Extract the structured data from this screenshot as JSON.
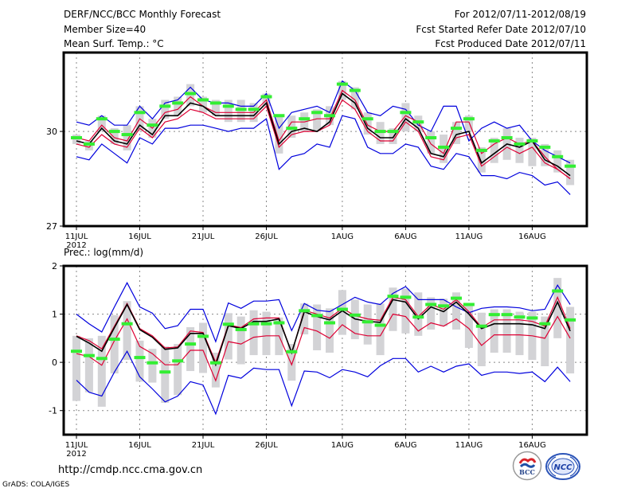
{
  "header": {
    "title": "DERF/NCC/BCC Monthly Forecast",
    "member_size": "Member Size=40",
    "variable": "Mean Surf. Temp.: °C",
    "period": "For 2012/07/11-2012/08/19",
    "started": "Fcst Started Refer Date 2012/07/10",
    "produced": "Fcst Produced Date 2012/07/11"
  },
  "footer": {
    "url": "http://cmdp.ncc.cma.gov.cn",
    "credit": "GrADS: COLA/IGES",
    "logos": [
      "BCC",
      "NCC"
    ]
  },
  "colors": {
    "envelope": "#0000dd",
    "quartile": "#dd0033",
    "mean": "#000000",
    "box": "#d3d3d6",
    "median": "#33ee33",
    "grid": "#888888"
  },
  "chart_data": [
    {
      "type": "line",
      "title": "Mean Surf. Temp.: °C",
      "ylabel": "°C",
      "ylim": [
        27,
        32.5
      ],
      "yticks": [
        27,
        30
      ],
      "xlim_days": [
        -1,
        40.5
      ],
      "xticks": [
        {
          "day": 0,
          "label": "11JUL",
          "sub": "2012"
        },
        {
          "day": 5,
          "label": "16JUL"
        },
        {
          "day": 10,
          "label": "21JUL"
        },
        {
          "day": 15,
          "label": "26JUL"
        },
        {
          "day": 21,
          "label": "1AUG"
        },
        {
          "day": 26,
          "label": "6AUG"
        },
        {
          "day": 31,
          "label": "11AUG"
        },
        {
          "day": 36,
          "label": "16AUG"
        }
      ],
      "grid": true,
      "days": [
        0,
        1,
        2,
        3,
        4,
        5,
        6,
        7,
        8,
        9,
        10,
        11,
        12,
        13,
        14,
        15,
        16,
        17,
        18,
        19,
        20,
        21,
        22,
        23,
        24,
        25,
        26,
        27,
        28,
        29,
        30,
        31,
        32,
        33,
        34,
        35,
        36,
        37,
        38,
        39
      ],
      "series": [
        {
          "name": "max",
          "values": [
            30.3,
            30.2,
            30.5,
            30.2,
            30.2,
            30.8,
            30.4,
            30.9,
            31.0,
            31.4,
            31.0,
            30.9,
            30.9,
            30.8,
            30.8,
            31.2,
            30.1,
            30.6,
            30.7,
            30.8,
            30.6,
            31.6,
            31.3,
            30.6,
            30.5,
            30.8,
            30.7,
            30.2,
            30.0,
            30.8,
            30.8,
            29.7,
            30.1,
            30.3,
            30.1,
            30.2,
            29.7,
            29.4,
            29.2,
            29.0
          ]
        },
        {
          "name": "upper_quartile",
          "values": [
            29.8,
            29.7,
            30.2,
            29.8,
            29.7,
            30.4,
            30.1,
            30.6,
            30.7,
            31.1,
            30.8,
            30.6,
            30.6,
            30.6,
            30.6,
            31.0,
            29.7,
            30.3,
            30.3,
            30.4,
            30.4,
            31.3,
            31.0,
            30.2,
            30.0,
            30.0,
            30.5,
            30.3,
            29.6,
            29.3,
            30.3,
            30.3,
            29.3,
            29.6,
            29.8,
            29.6,
            29.7,
            29.2,
            28.8,
            28.5
          ]
        },
        {
          "name": "mean",
          "values": [
            29.7,
            29.6,
            30.1,
            29.7,
            29.6,
            30.2,
            29.9,
            30.5,
            30.5,
            30.9,
            30.8,
            30.5,
            30.5,
            30.5,
            30.5,
            30.9,
            29.6,
            30.0,
            30.1,
            30.0,
            30.3,
            31.2,
            30.9,
            30.1,
            29.8,
            29.8,
            30.4,
            30.1,
            29.3,
            29.2,
            29.9,
            30.0,
            29.0,
            29.3,
            29.6,
            29.5,
            29.7,
            29.1,
            28.9,
            28.6
          ]
        },
        {
          "name": "lower_quartile",
          "values": [
            29.6,
            29.5,
            29.9,
            29.6,
            29.5,
            30.1,
            29.8,
            30.3,
            30.4,
            30.7,
            30.6,
            30.4,
            30.4,
            30.4,
            30.4,
            30.8,
            29.5,
            29.9,
            30.0,
            30.0,
            30.2,
            31.0,
            30.7,
            30.0,
            29.7,
            29.7,
            30.3,
            30.0,
            29.2,
            29.1,
            29.8,
            29.9,
            28.9,
            29.2,
            29.5,
            29.3,
            29.5,
            29.0,
            28.8,
            28.5
          ]
        },
        {
          "name": "min",
          "values": [
            29.2,
            29.1,
            29.6,
            29.3,
            29.0,
            29.8,
            29.6,
            30.1,
            30.1,
            30.2,
            30.2,
            30.1,
            30.0,
            30.1,
            30.1,
            30.4,
            28.8,
            29.2,
            29.3,
            29.6,
            29.5,
            30.5,
            30.4,
            29.5,
            29.3,
            29.3,
            29.6,
            29.5,
            28.9,
            28.8,
            29.3,
            29.2,
            28.6,
            28.6,
            28.5,
            28.7,
            28.6,
            28.3,
            28.4,
            28.0
          ]
        },
        {
          "name": "median",
          "values": [
            29.8,
            29.6,
            30.4,
            30.0,
            29.9,
            30.6,
            30.2,
            30.8,
            30.9,
            31.2,
            31.0,
            30.9,
            30.8,
            30.7,
            30.7,
            31.1,
            30.5,
            30.1,
            30.4,
            30.6,
            30.5,
            31.5,
            31.3,
            30.4,
            30.0,
            30.0,
            30.6,
            30.3,
            29.8,
            29.5,
            30.1,
            30.4,
            29.4,
            29.7,
            29.8,
            29.6,
            29.7,
            29.5,
            29.2,
            28.9
          ]
        },
        {
          "name": "box_high",
          "values": [
            29.9,
            29.7,
            30.5,
            30.1,
            30.2,
            30.8,
            30.4,
            31.0,
            31.1,
            31.5,
            31.1,
            31.0,
            31.0,
            31.0,
            30.9,
            31.2,
            30.5,
            30.5,
            30.6,
            30.7,
            30.8,
            31.6,
            31.4,
            30.6,
            30.3,
            30.1,
            30.9,
            30.5,
            30.0,
            29.9,
            30.3,
            30.5,
            29.5,
            29.8,
            30.1,
            29.8,
            29.8,
            29.6,
            29.4,
            29.1
          ]
        },
        {
          "name": "box_low",
          "values": [
            29.6,
            29.4,
            30.0,
            29.6,
            29.4,
            30.0,
            29.8,
            30.4,
            30.5,
            30.8,
            30.6,
            30.5,
            30.3,
            30.3,
            30.3,
            30.8,
            29.3,
            29.8,
            30.0,
            30.0,
            30.2,
            31.0,
            30.7,
            29.9,
            29.6,
            29.6,
            30.0,
            30.0,
            29.3,
            29.0,
            29.6,
            30.0,
            28.7,
            29.0,
            29.1,
            29.0,
            28.9,
            28.9,
            28.7,
            28.3
          ]
        }
      ]
    },
    {
      "type": "line",
      "title": "Prec.: log(mm/d)",
      "ylabel": "log(mm/d)",
      "ylim": [
        -1.5,
        2.0
      ],
      "yticks": [
        -1,
        0,
        1,
        2
      ],
      "xlim_days": [
        -1,
        40.5
      ],
      "xticks": [
        {
          "day": 0,
          "label": "11JUL",
          "sub": "2012"
        },
        {
          "day": 5,
          "label": "16JUL"
        },
        {
          "day": 10,
          "label": "21JUL"
        },
        {
          "day": 15,
          "label": "26JUL"
        },
        {
          "day": 21,
          "label": "1AUG"
        },
        {
          "day": 26,
          "label": "6AUG"
        },
        {
          "day": 31,
          "label": "11AUG"
        },
        {
          "day": 36,
          "label": "16AUG"
        }
      ],
      "grid": true,
      "days": [
        0,
        1,
        2,
        3,
        4,
        5,
        6,
        7,
        8,
        9,
        10,
        11,
        12,
        13,
        14,
        15,
        16,
        17,
        18,
        19,
        20,
        21,
        22,
        23,
        24,
        25,
        26,
        27,
        28,
        29,
        30,
        31,
        32,
        33,
        34,
        35,
        36,
        37,
        38,
        39
      ],
      "series": [
        {
          "name": "max",
          "values": [
            1.0,
            0.8,
            0.63,
            1.15,
            1.65,
            1.15,
            1.02,
            0.7,
            0.76,
            1.1,
            1.1,
            0.43,
            1.23,
            1.12,
            1.27,
            1.27,
            1.3,
            0.66,
            1.22,
            1.08,
            1.05,
            1.2,
            1.35,
            1.25,
            1.2,
            1.43,
            1.57,
            1.3,
            1.3,
            1.3,
            1.15,
            1.03,
            1.12,
            1.15,
            1.15,
            1.13,
            1.07,
            1.1,
            1.6,
            1.2
          ]
        },
        {
          "name": "upper_quartile",
          "values": [
            0.55,
            0.45,
            0.28,
            0.75,
            1.22,
            0.7,
            0.55,
            0.3,
            0.32,
            0.65,
            0.62,
            0.0,
            0.78,
            0.72,
            0.9,
            0.92,
            0.92,
            0.2,
            1.08,
            1.0,
            0.92,
            1.12,
            0.97,
            0.9,
            0.87,
            1.35,
            1.3,
            0.95,
            1.2,
            1.1,
            1.3,
            1.05,
            0.72,
            0.88,
            0.88,
            0.88,
            0.85,
            0.75,
            1.35,
            0.7
          ]
        },
        {
          "name": "mean",
          "values": [
            0.54,
            0.4,
            0.23,
            0.72,
            1.2,
            0.68,
            0.52,
            0.27,
            0.3,
            0.6,
            0.6,
            -0.05,
            0.76,
            0.7,
            0.85,
            0.85,
            0.9,
            0.2,
            1.05,
            0.95,
            0.88,
            1.07,
            0.9,
            0.85,
            0.83,
            1.3,
            1.25,
            0.9,
            1.15,
            1.05,
            1.25,
            1.0,
            0.7,
            0.8,
            0.8,
            0.8,
            0.78,
            0.7,
            1.25,
            0.65
          ]
        },
        {
          "name": "lower_quartile",
          "values": [
            0.18,
            0.12,
            -0.06,
            0.45,
            0.9,
            0.33,
            0.18,
            -0.05,
            -0.05,
            0.25,
            0.25,
            -0.38,
            0.43,
            0.38,
            0.52,
            0.55,
            0.55,
            -0.05,
            0.72,
            0.65,
            0.5,
            0.78,
            0.6,
            0.55,
            0.55,
            1.0,
            0.95,
            0.65,
            0.82,
            0.75,
            0.9,
            0.7,
            0.35,
            0.57,
            0.57,
            0.57,
            0.55,
            0.5,
            0.95,
            0.5
          ]
        },
        {
          "name": "min",
          "values": [
            -0.37,
            -0.62,
            -0.7,
            -0.2,
            0.23,
            -0.3,
            -0.55,
            -0.82,
            -0.7,
            -0.4,
            -0.47,
            -1.07,
            -0.27,
            -0.33,
            -0.12,
            -0.15,
            -0.15,
            -0.9,
            -0.18,
            -0.2,
            -0.32,
            -0.15,
            -0.2,
            -0.3,
            -0.07,
            0.08,
            0.08,
            -0.2,
            -0.08,
            -0.2,
            -0.08,
            -0.03,
            -0.27,
            -0.2,
            -0.2,
            -0.23,
            -0.2,
            -0.4,
            -0.1,
            -0.4
          ]
        },
        {
          "name": "median",
          "values": [
            0.23,
            0.14,
            0.08,
            0.48,
            0.8,
            0.1,
            -0.01,
            -0.2,
            0.03,
            0.38,
            0.54,
            -0.01,
            0.79,
            0.68,
            0.8,
            0.8,
            0.82,
            0.22,
            1.07,
            0.97,
            0.82,
            1.1,
            0.98,
            0.84,
            0.77,
            1.37,
            1.35,
            0.94,
            1.2,
            1.17,
            1.33,
            1.2,
            0.75,
            0.99,
            0.99,
            0.94,
            0.92,
            0.8,
            1.48,
            0.88
          ]
        },
        {
          "name": "box_high",
          "values": [
            0.55,
            0.5,
            0.55,
            0.98,
            1.27,
            0.45,
            0.28,
            0.33,
            0.38,
            0.73,
            0.82,
            0.2,
            1.02,
            0.95,
            1.08,
            1.05,
            0.93,
            0.38,
            1.22,
            1.2,
            1.12,
            1.5,
            1.3,
            1.2,
            1.22,
            1.55,
            1.53,
            1.45,
            1.35,
            1.32,
            1.45,
            1.2,
            1.03,
            1.1,
            1.1,
            1.05,
            1.05,
            0.95,
            1.75,
            1.15
          ]
        },
        {
          "name": "box_low",
          "values": [
            -0.8,
            -0.62,
            -0.92,
            -0.23,
            0.05,
            -0.4,
            -0.42,
            -0.84,
            -0.68,
            -0.18,
            -0.22,
            -0.52,
            0.06,
            -0.04,
            0.15,
            0.15,
            0.15,
            -0.38,
            0.58,
            0.25,
            0.2,
            0.57,
            0.48,
            0.37,
            0.15,
            0.65,
            0.6,
            0.55,
            0.68,
            0.75,
            0.68,
            0.3,
            -0.08,
            0.2,
            0.2,
            0.15,
            0.05,
            -0.08,
            0.5,
            -0.23
          ]
        }
      ]
    }
  ]
}
